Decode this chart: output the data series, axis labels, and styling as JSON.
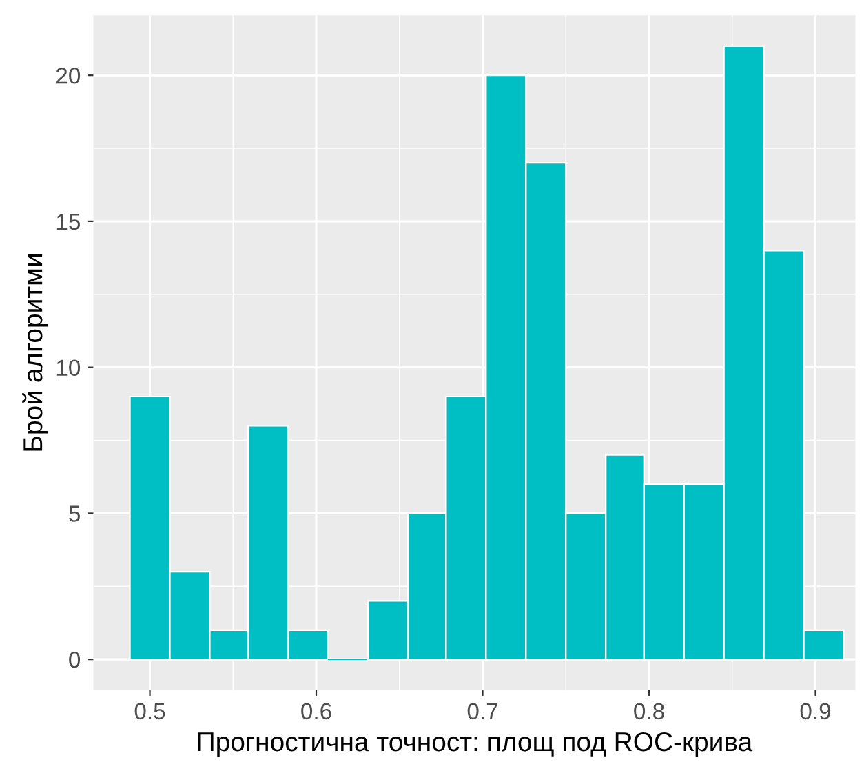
{
  "chart_data": {
    "type": "histogram",
    "xlabel": "Прогностична точност: площ под ROC-крива",
    "ylabel": "Брой алгоритми",
    "bins": [
      0.488,
      0.512,
      0.536,
      0.559,
      0.583,
      0.607,
      0.631,
      0.655,
      0.678,
      0.702,
      0.726,
      0.75,
      0.774,
      0.797,
      0.821,
      0.845,
      0.869,
      0.893,
      0.917
    ],
    "values": [
      9,
      3,
      1,
      8,
      1,
      0,
      2,
      5,
      9,
      20,
      17,
      5,
      7,
      6,
      6,
      21,
      14,
      1
    ],
    "color": "#00bfc4",
    "xlim": [
      0.466,
      0.924
    ],
    "ylim": [
      -1.05,
      22.05
    ],
    "xticks": [
      0.5,
      0.6,
      0.7,
      0.8,
      0.9
    ],
    "yticks": [
      0,
      5,
      10,
      15,
      20
    ],
    "grid": true
  }
}
